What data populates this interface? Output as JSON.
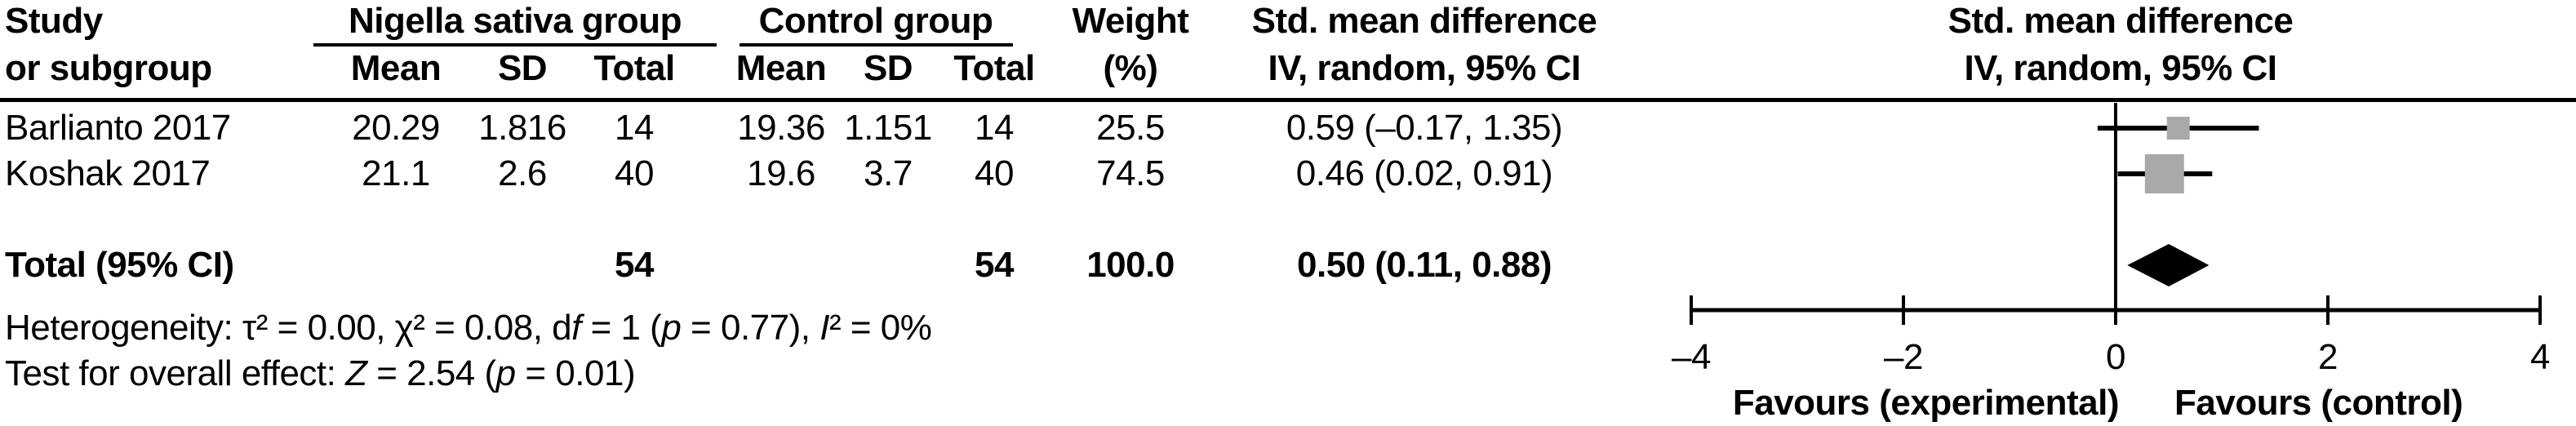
{
  "header": {
    "col1_line1": "Study",
    "col1_line2": "or subgroup",
    "group1_label": "Nigella sativa group",
    "group2_label": "Control group",
    "g1_sub_mean": "Mean",
    "g1_sub_sd": "SD",
    "g1_sub_total": "Total",
    "g2_sub_mean": "Mean",
    "g2_sub_sd": "SD",
    "g2_sub_total": "Total",
    "weight_line1": "Weight",
    "weight_line2": "(%)",
    "smd_line1": "Std. mean difference",
    "smd_line2": "IV, random, 95% CI",
    "plot_line1": "Std. mean difference",
    "plot_line2": "IV, random, 95% CI"
  },
  "rows": [
    {
      "study": "Barlianto 2017",
      "n_mean": "20.29",
      "n_sd": "1.816",
      "n_total": "14",
      "c_mean": "19.36",
      "c_sd": "1.151",
      "c_total": "14",
      "weight": "25.5",
      "smd_ci": "0.59 (–0.17, 1.35)"
    },
    {
      "study": "Koshak 2017",
      "n_mean": "21.1",
      "n_sd": "2.6",
      "n_total": "40",
      "c_mean": "19.6",
      "c_sd": "3.7",
      "c_total": "40",
      "weight": "74.5",
      "smd_ci": "0.46 (0.02, 0.91)"
    }
  ],
  "total_row": {
    "label": "Total (95% CI)",
    "n_total": "54",
    "c_total": "54",
    "weight": "100.0",
    "smd_ci": "0.50 (0.11, 0.88)"
  },
  "stats": {
    "het": [
      "Heterogeneity: τ² = 0.00, χ² = 0.08, d",
      "f",
      " = 1 (",
      "p",
      " = 0.77), ",
      "I",
      "² = 0%"
    ],
    "test": [
      "Test for overall effect: ",
      "Z",
      " = 2.54 (",
      "p",
      " = 0.01)"
    ]
  },
  "plot": {
    "favours_left": "Favours (experimental)",
    "favours_right": "Favours (control)",
    "xtick_labels": [
      "–4",
      "–2",
      "0",
      "2",
      "4"
    ]
  },
  "chart_data": {
    "type": "scatter",
    "subtype": "forest-plot",
    "title": "Std. mean difference IV, random, 95% CI",
    "effect_model": "IV, random, 95% CI",
    "xlim": [
      -4,
      4
    ],
    "xticks": [
      -4,
      -2,
      0,
      2,
      4
    ],
    "x_annotation_left": "Favours (experimental)",
    "x_annotation_right": "Favours (control)",
    "marker_color": "#a9a9a9",
    "diamond_color": "#000000",
    "studies": [
      {
        "name": "Barlianto 2017",
        "smd": 0.59,
        "ci_low": -0.17,
        "ci_high": 1.35,
        "weight_pct": 25.5
      },
      {
        "name": "Koshak 2017",
        "smd": 0.46,
        "ci_low": 0.02,
        "ci_high": 0.91,
        "weight_pct": 74.5
      }
    ],
    "total": {
      "name": "Total (95% CI)",
      "smd": 0.5,
      "ci_low": 0.11,
      "ci_high": 0.88,
      "weight_pct": 100.0
    },
    "heterogeneity": {
      "tau2": 0.0,
      "chi2": 0.08,
      "df": 1,
      "p": 0.77,
      "I2_pct": 0
    },
    "overall_effect": {
      "Z": 2.54,
      "p": 0.01
    }
  }
}
